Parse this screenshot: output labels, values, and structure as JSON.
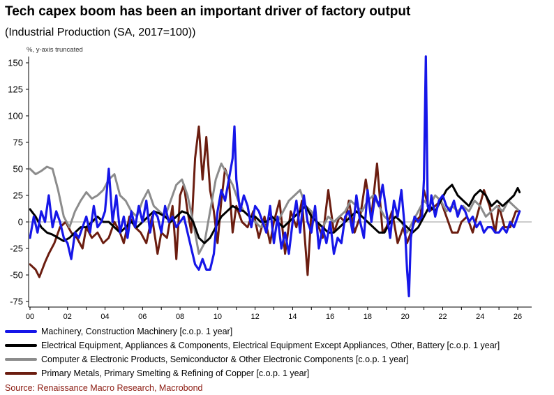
{
  "title": "Tech capex boom has been an important driver of factory output",
  "subtitle": "(Industrial Production (SA, 2017=100))",
  "unit_note": "%, y-axis truncated",
  "source": "Source: Renaissance Macro Research, Macrobond",
  "chart_data": {
    "type": "line",
    "title": "Tech capex boom has been an important driver of factory output",
    "subtitle": "(Industrial Production (SA, 2017=100))",
    "ylabel": "%, y-axis truncated",
    "xlim": [
      2000,
      2026.5
    ],
    "ylim": [
      -75,
      155
    ],
    "yticks": [
      -75,
      -50,
      -25,
      0,
      25,
      50,
      75,
      100,
      125,
      150
    ],
    "xticks": [
      2000,
      2002,
      2004,
      2006,
      2008,
      2010,
      2012,
      2014,
      2016,
      2018,
      2020,
      2022,
      2024,
      2026
    ],
    "xtick_labels": [
      "00",
      "02",
      "04",
      "06",
      "08",
      "10",
      "12",
      "14",
      "16",
      "18",
      "20",
      "22",
      "24",
      "26"
    ],
    "grid": false,
    "legend_position": "bottom",
    "series": [
      {
        "name": "Primary Metals, Primary Smelting & Refining of Copper [c.o.p. 1 year]",
        "color": "#6b1d10",
        "x": [
          2000.0,
          2000.3,
          2000.5,
          2000.8,
          2001.0,
          2001.3,
          2001.6,
          2001.9,
          2002.2,
          2002.5,
          2002.8,
          2003.0,
          2003.3,
          2003.6,
          2003.9,
          2004.2,
          2004.5,
          2004.8,
          2005.0,
          2005.3,
          2005.6,
          2005.9,
          2006.2,
          2006.5,
          2006.8,
          2007.0,
          2007.3,
          2007.6,
          2007.8,
          2008.0,
          2008.2,
          2008.4,
          2008.6,
          2008.8,
          2009.0,
          2009.2,
          2009.4,
          2009.6,
          2009.8,
          2010.0,
          2010.2,
          2010.4,
          2010.6,
          2010.8,
          2011.0,
          2011.3,
          2011.6,
          2011.9,
          2012.2,
          2012.5,
          2012.8,
          2013.0,
          2013.3,
          2013.6,
          2013.9,
          2014.2,
          2014.5,
          2014.8,
          2015.0,
          2015.3,
          2015.6,
          2015.9,
          2016.2,
          2016.5,
          2016.8,
          2017.0,
          2017.3,
          2017.6,
          2017.9,
          2018.2,
          2018.5,
          2018.8,
          2019.0,
          2019.3,
          2019.6,
          2019.9,
          2020.1,
          2020.3,
          2020.5,
          2020.8,
          2021.0,
          2021.3,
          2021.6,
          2021.9,
          2022.2,
          2022.5,
          2022.8,
          2023.0,
          2023.3,
          2023.6,
          2023.9,
          2024.2,
          2024.5,
          2024.8,
          2025.0,
          2025.3,
          2025.6,
          2025.9,
          2026.1
        ],
        "values": [
          -40,
          -45,
          -52,
          -38,
          -30,
          -20,
          -5,
          0,
          -10,
          -15,
          -25,
          -5,
          -15,
          -10,
          -20,
          -15,
          0,
          -10,
          -20,
          5,
          -5,
          -10,
          -20,
          5,
          -30,
          -10,
          -15,
          15,
          -35,
          25,
          35,
          10,
          -10,
          60,
          90,
          40,
          80,
          30,
          10,
          -20,
          20,
          50,
          40,
          -10,
          15,
          0,
          -5,
          10,
          -15,
          5,
          -20,
          0,
          20,
          -30,
          10,
          -5,
          20,
          -50,
          10,
          0,
          -15,
          30,
          -10,
          5,
          0,
          20,
          -10,
          5,
          40,
          5,
          55,
          -10,
          -5,
          10,
          -20,
          -5,
          -20,
          -10,
          0,
          5,
          30,
          10,
          15,
          20,
          5,
          -10,
          -10,
          0,
          5,
          -10,
          10,
          30,
          15,
          -10,
          15,
          -5,
          -5,
          10,
          10
        ]
      },
      {
        "name": "Computer & Electronic Products, Semiconductor & Other Electronic Components [c.o.p. 1 year]",
        "color": "#8c8c8c",
        "x": [
          2000.0,
          2000.3,
          2000.6,
          2000.9,
          2001.2,
          2001.5,
          2001.8,
          2002.1,
          2002.4,
          2002.7,
          2003.0,
          2003.3,
          2003.6,
          2003.9,
          2004.2,
          2004.5,
          2004.8,
          2005.1,
          2005.4,
          2005.7,
          2006.0,
          2006.3,
          2006.6,
          2006.9,
          2007.2,
          2007.5,
          2007.8,
          2008.1,
          2008.4,
          2008.7,
          2009.0,
          2009.3,
          2009.6,
          2009.9,
          2010.2,
          2010.5,
          2010.8,
          2011.1,
          2011.4,
          2011.7,
          2012.0,
          2012.3,
          2012.6,
          2012.9,
          2013.2,
          2013.5,
          2013.8,
          2014.1,
          2014.4,
          2014.7,
          2015.0,
          2015.3,
          2015.6,
          2015.9,
          2016.2,
          2016.5,
          2016.8,
          2017.1,
          2017.4,
          2017.7,
          2018.0,
          2018.3,
          2018.6,
          2018.9,
          2019.2,
          2019.5,
          2019.8,
          2020.1,
          2020.4,
          2020.7,
          2021.0,
          2021.3,
          2021.6,
          2021.9,
          2022.2,
          2022.5,
          2022.8,
          2023.1,
          2023.4,
          2023.7,
          2024.0,
          2024.3,
          2024.6,
          2024.9,
          2025.2,
          2025.5,
          2025.8,
          2026.1
        ],
        "values": [
          50,
          45,
          48,
          52,
          50,
          30,
          5,
          -5,
          10,
          20,
          28,
          22,
          25,
          30,
          40,
          45,
          25,
          20,
          10,
          5,
          20,
          30,
          15,
          10,
          5,
          20,
          35,
          40,
          25,
          0,
          -30,
          -20,
          10,
          40,
          55,
          45,
          35,
          20,
          10,
          5,
          0,
          -5,
          0,
          5,
          0,
          10,
          20,
          25,
          30,
          15,
          10,
          0,
          -5,
          5,
          0,
          5,
          10,
          20,
          15,
          10,
          20,
          25,
          15,
          5,
          0,
          5,
          0,
          -10,
          0,
          10,
          20,
          15,
          25,
          20,
          10,
          15,
          10,
          15,
          10,
          20,
          15,
          5,
          10,
          15,
          10,
          20,
          15,
          10
        ]
      },
      {
        "name": "Electrical Equipment, Appliances & Components, Electrical Equipment Except Appliances, Other, Battery [c.o.p. 1 year]",
        "color": "#000000",
        "x": [
          2000.0,
          2000.3,
          2000.6,
          2000.9,
          2001.2,
          2001.5,
          2001.8,
          2002.1,
          2002.4,
          2002.7,
          2003.0,
          2003.3,
          2003.6,
          2003.9,
          2004.2,
          2004.5,
          2004.8,
          2005.1,
          2005.4,
          2005.7,
          2006.0,
          2006.3,
          2006.6,
          2006.9,
          2007.2,
          2007.5,
          2007.8,
          2008.1,
          2008.4,
          2008.7,
          2009.0,
          2009.3,
          2009.6,
          2009.9,
          2010.2,
          2010.5,
          2010.8,
          2011.1,
          2011.4,
          2011.7,
          2012.0,
          2012.3,
          2012.6,
          2012.9,
          2013.2,
          2013.5,
          2013.8,
          2014.1,
          2014.4,
          2014.7,
          2015.0,
          2015.3,
          2015.6,
          2015.9,
          2016.2,
          2016.5,
          2016.8,
          2017.1,
          2017.4,
          2017.7,
          2018.0,
          2018.3,
          2018.6,
          2018.9,
          2019.2,
          2019.5,
          2019.8,
          2020.1,
          2020.4,
          2020.7,
          2021.0,
          2021.3,
          2021.6,
          2021.9,
          2022.2,
          2022.5,
          2022.8,
          2023.1,
          2023.4,
          2023.7,
          2024.0,
          2024.3,
          2024.6,
          2024.9,
          2025.2,
          2025.5,
          2025.8,
          2026.0,
          2026.1
        ],
        "values": [
          12,
          5,
          -5,
          -10,
          -12,
          -15,
          -18,
          -15,
          -10,
          -5,
          -5,
          0,
          5,
          0,
          0,
          -5,
          -10,
          -5,
          0,
          -5,
          0,
          5,
          10,
          8,
          5,
          0,
          5,
          10,
          8,
          0,
          -15,
          -20,
          -15,
          -5,
          5,
          10,
          15,
          12,
          10,
          5,
          5,
          0,
          0,
          5,
          0,
          -5,
          0,
          5,
          10,
          15,
          5,
          0,
          -5,
          -10,
          -10,
          -5,
          0,
          5,
          10,
          5,
          0,
          -5,
          -10,
          -10,
          0,
          5,
          0,
          -5,
          -10,
          -5,
          5,
          15,
          10,
          20,
          30,
          35,
          25,
          20,
          15,
          25,
          30,
          25,
          15,
          20,
          15,
          20,
          25,
          32,
          28
        ]
      },
      {
        "name": "Machinery, Construction Machinery [c.o.p. 1 year]",
        "color": "#1616e8",
        "x": [
          2000.0,
          2000.2,
          2000.4,
          2000.6,
          2000.8,
          2001.0,
          2001.2,
          2001.4,
          2001.6,
          2001.8,
          2002.0,
          2002.2,
          2002.4,
          2002.6,
          2002.8,
          2003.0,
          2003.2,
          2003.4,
          2003.6,
          2003.8,
          2004.0,
          2004.2,
          2004.4,
          2004.6,
          2004.8,
          2005.0,
          2005.2,
          2005.4,
          2005.6,
          2005.8,
          2006.0,
          2006.2,
          2006.4,
          2006.6,
          2006.8,
          2007.0,
          2007.2,
          2007.4,
          2007.6,
          2007.8,
          2008.0,
          2008.2,
          2008.4,
          2008.6,
          2008.8,
          2009.0,
          2009.2,
          2009.4,
          2009.6,
          2009.8,
          2010.0,
          2010.2,
          2010.4,
          2010.6,
          2010.8,
          2010.9,
          2011.0,
          2011.2,
          2011.4,
          2011.6,
          2011.8,
          2012.0,
          2012.2,
          2012.4,
          2012.6,
          2012.8,
          2013.0,
          2013.2,
          2013.4,
          2013.6,
          2013.8,
          2014.0,
          2014.2,
          2014.4,
          2014.6,
          2014.8,
          2015.0,
          2015.2,
          2015.4,
          2015.6,
          2015.8,
          2016.0,
          2016.2,
          2016.4,
          2016.6,
          2016.8,
          2017.0,
          2017.2,
          2017.4,
          2017.6,
          2017.8,
          2018.0,
          2018.2,
          2018.4,
          2018.6,
          2018.8,
          2019.0,
          2019.2,
          2019.4,
          2019.6,
          2019.8,
          2020.0,
          2020.1,
          2020.2,
          2020.3,
          2020.5,
          2020.7,
          2020.9,
          2021.0,
          2021.1,
          2021.2,
          2021.3,
          2021.4,
          2021.6,
          2021.8,
          2022.0,
          2022.2,
          2022.4,
          2022.6,
          2022.8,
          2023.0,
          2023.2,
          2023.4,
          2023.6,
          2023.8,
          2024.0,
          2024.2,
          2024.4,
          2024.6,
          2024.8,
          2025.0,
          2025.2,
          2025.4,
          2025.6,
          2025.8,
          2026.0,
          2026.1
        ],
        "values": [
          -15,
          5,
          -10,
          10,
          0,
          25,
          -5,
          10,
          0,
          -15,
          -20,
          -35,
          -10,
          -15,
          -5,
          5,
          -10,
          15,
          -5,
          0,
          10,
          50,
          0,
          25,
          -10,
          5,
          -15,
          10,
          -5,
          15,
          0,
          20,
          -10,
          10,
          5,
          -10,
          15,
          0,
          5,
          -5,
          0,
          5,
          -10,
          -25,
          -40,
          -45,
          -35,
          -45,
          -45,
          -30,
          10,
          30,
          20,
          40,
          60,
          90,
          40,
          10,
          25,
          15,
          -5,
          15,
          10,
          0,
          -10,
          15,
          -20,
          5,
          -25,
          -10,
          -30,
          0,
          20,
          -10,
          25,
          0,
          -10,
          15,
          -25,
          -5,
          -20,
          0,
          -30,
          -15,
          -20,
          5,
          10,
          -10,
          25,
          0,
          -15,
          30,
          0,
          25,
          15,
          35,
          10,
          -15,
          20,
          5,
          30,
          -10,
          -45,
          -70,
          -15,
          5,
          0,
          5,
          40,
          156,
          15,
          10,
          25,
          5,
          20,
          25,
          15,
          10,
          20,
          5,
          15,
          10,
          0,
          5,
          -5,
          0,
          -10,
          -5,
          -5,
          -10,
          -10,
          -5,
          -10,
          0,
          -5,
          5,
          10
        ]
      }
    ]
  },
  "legend": {
    "items": [
      {
        "label": "Machinery, Construction Machinery [c.o.p. 1 year]",
        "color": "#1616e8"
      },
      {
        "label": "Electrical Equipment, Appliances & Components, Electrical Equipment Except Appliances, Other, Battery [c.o.p. 1 year]",
        "color": "#000000"
      },
      {
        "label": "Computer & Electronic Products, Semiconductor & Other Electronic Components [c.o.p. 1 year]",
        "color": "#8c8c8c"
      },
      {
        "label": "Primary Metals, Primary Smelting & Refining of Copper [c.o.p. 1 year]",
        "color": "#6b1d10"
      }
    ]
  }
}
